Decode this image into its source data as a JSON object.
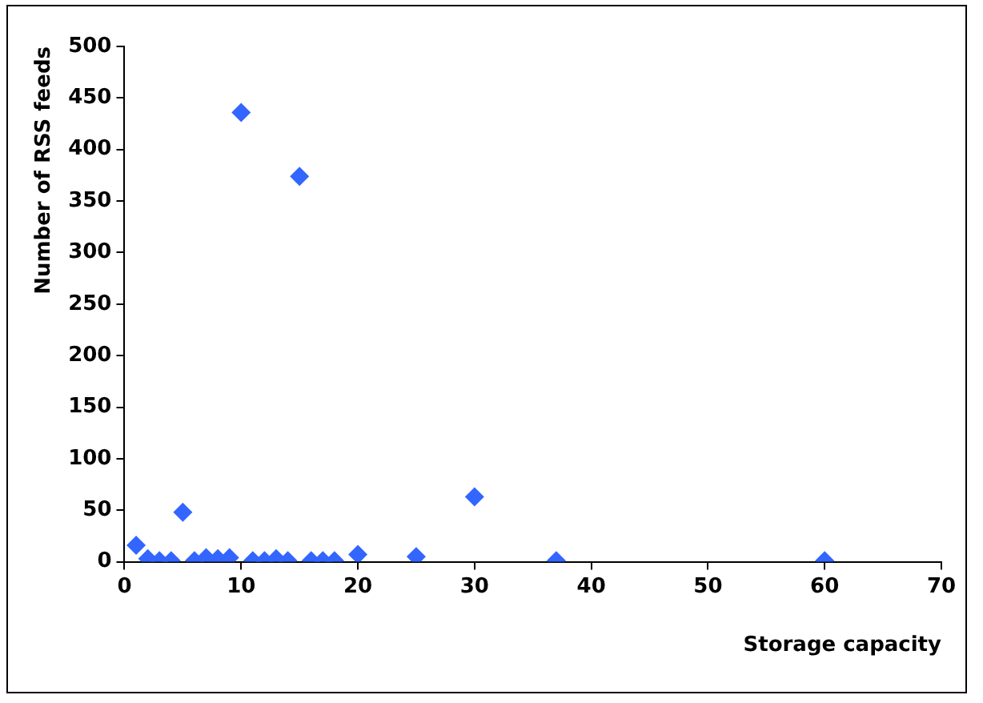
{
  "chart_data": {
    "type": "scatter",
    "xlabel": "Storage capacity",
    "ylabel": "Number of RSS feeds",
    "x": [
      1,
      2,
      3,
      4,
      5,
      6,
      7,
      8,
      9,
      10,
      11,
      12,
      13,
      14,
      15,
      16,
      17,
      18,
      20,
      25,
      30,
      37,
      60
    ],
    "series": [
      {
        "color": "#3366ff",
        "values": [
          16,
          3,
          1,
          1,
          48,
          1,
          4,
          3,
          4,
          436,
          1,
          1,
          3,
          1,
          374,
          1,
          1,
          1,
          7,
          5,
          63,
          1,
          1
        ]
      }
    ],
    "xlim": [
      0,
      70
    ],
    "xticks": [
      0,
      10,
      20,
      30,
      40,
      50,
      60,
      70
    ],
    "ylim": [
      0,
      500
    ],
    "yticks": [
      0,
      50,
      100,
      150,
      200,
      250,
      300,
      350,
      400,
      450,
      500
    ],
    "marker": "diamond",
    "grid": false,
    "legend": false
  }
}
